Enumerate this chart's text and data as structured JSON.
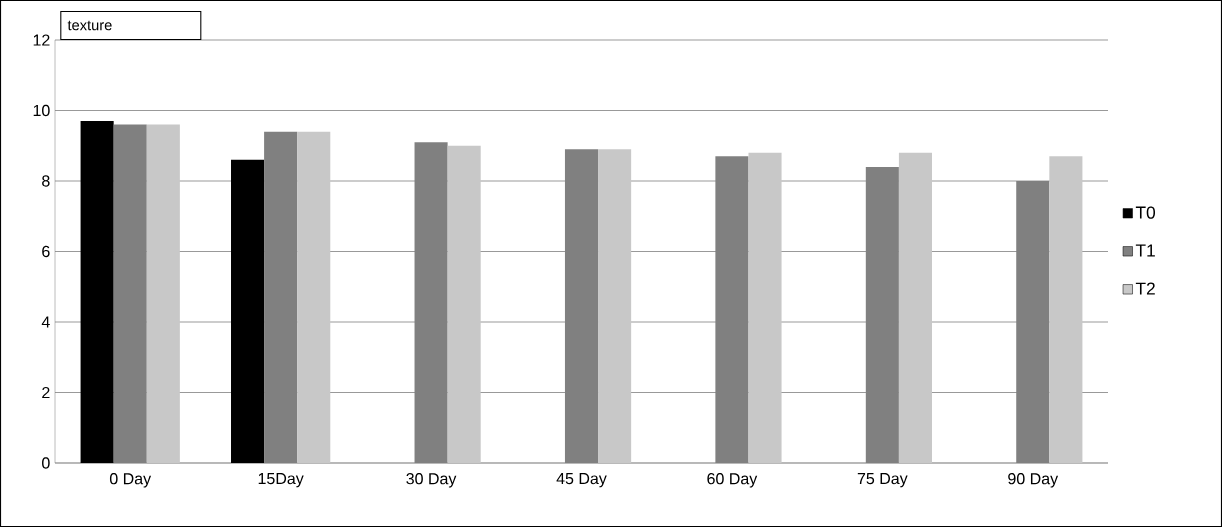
{
  "chart_data": {
    "type": "bar",
    "title": "texture",
    "categories": [
      "0 Day",
      "15Day",
      "30 Day",
      "45 Day",
      "60 Day",
      "75 Day",
      "90 Day"
    ],
    "series": [
      {
        "name": "T0",
        "color": "#000000",
        "values": [
          9.7,
          8.6,
          null,
          null,
          null,
          null,
          null
        ]
      },
      {
        "name": "T1",
        "color": "#808080",
        "values": [
          9.6,
          9.4,
          9.1,
          8.9,
          8.7,
          8.4,
          8.0
        ]
      },
      {
        "name": "T2",
        "color": "#c8c8c8",
        "values": [
          9.6,
          9.4,
          9.0,
          8.9,
          8.8,
          8.8,
          8.7
        ]
      }
    ],
    "ylim": [
      0,
      12
    ],
    "yticks": [
      0,
      2,
      4,
      6,
      8,
      10,
      12
    ],
    "grid": "y",
    "legend": "right"
  }
}
